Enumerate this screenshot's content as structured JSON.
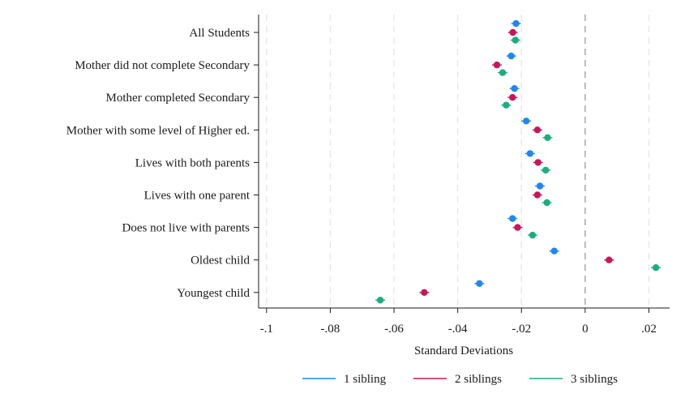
{
  "chart_data": {
    "type": "scatter",
    "title": "",
    "xlabel": "Standard Deviations",
    "ylabel": "",
    "xlim": [
      -0.1025,
      0.0265
    ],
    "xticks": [
      -0.1,
      -0.08,
      -0.06,
      -0.04,
      -0.02,
      0,
      0.02
    ],
    "xtick_labels": [
      "-.1",
      "-.08",
      "-.06",
      "-.04",
      "-.02",
      "0",
      ".02"
    ],
    "vertical_reference_line": 0,
    "grid": "vertical dashed",
    "legend_position": "bottom",
    "categories": [
      "All Students",
      "Mother did not complete Secondary",
      "Mother completed Secondary",
      "Mother with some level of Higher ed.",
      "Lives with both parents",
      "Lives with one parent",
      "Does not live with parents",
      "Oldest child",
      "Youngest child"
    ],
    "series": [
      {
        "name": "1 sibling",
        "color": "#1f87f0",
        "values": [
          -0.0217,
          -0.0232,
          -0.0222,
          -0.0185,
          -0.0173,
          -0.0142,
          -0.0228,
          -0.0097,
          -0.0332
        ]
      },
      {
        "name": "2 siblings",
        "color": "#c8165b",
        "values": [
          -0.0227,
          -0.0277,
          -0.0228,
          -0.015,
          -0.0148,
          -0.015,
          -0.0212,
          0.0075,
          -0.0505
        ]
      },
      {
        "name": "3 siblings",
        "color": "#1aae7e",
        "values": [
          -0.0219,
          -0.0259,
          -0.0248,
          -0.0118,
          -0.0124,
          -0.012,
          -0.0165,
          0.0222,
          -0.0643
        ]
      }
    ]
  }
}
